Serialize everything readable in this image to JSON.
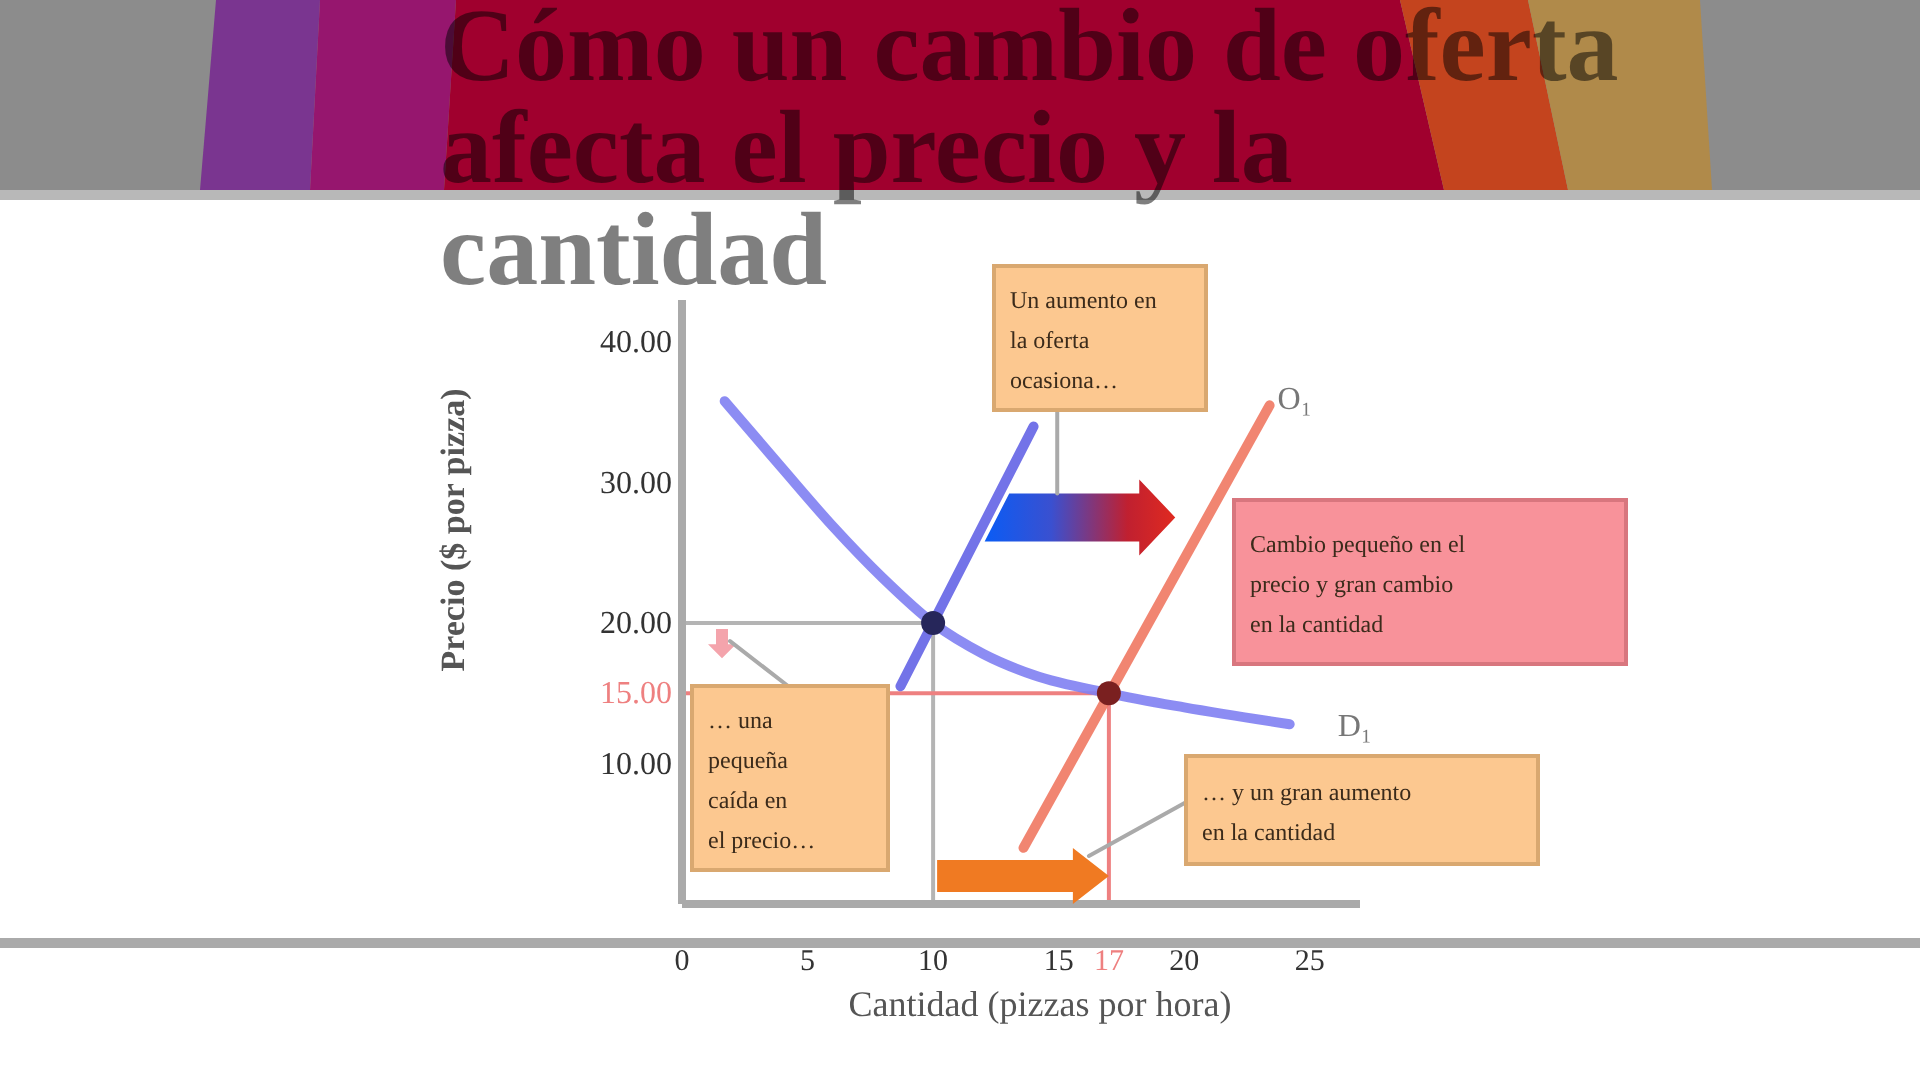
{
  "chart_data": {
    "type": "line",
    "title": "Cómo un cambio de oferta afecta el precio y la cantidad",
    "xlabel": "Cantidad (pizzas por hora)",
    "ylabel": "Precio ($ por pizza)",
    "xlim": [
      0,
      27
    ],
    "ylim": [
      0,
      43
    ],
    "xticks": [
      0,
      5,
      10,
      15,
      20,
      25
    ],
    "yticks": [
      {
        "value": 10,
        "label": "10.00"
      },
      {
        "value": 20,
        "label": "20.00"
      },
      {
        "value": 30,
        "label": "30.00"
      },
      {
        "value": 40,
        "label": "40.00"
      }
    ],
    "series": [
      {
        "name": "D₁",
        "color": "#7f7ff2",
        "x": [
          1.7,
          4,
          6,
          8,
          10,
          12,
          14,
          17,
          20,
          24.2
        ],
        "values": [
          35.8,
          31,
          26.9,
          23.2,
          20,
          17.8,
          16.3,
          15,
          14,
          12.8
        ]
      },
      {
        "color": "#6464e6",
        "x": [
          8.7,
          14
        ],
        "values": [
          15.5,
          34
        ]
      },
      {
        "name": "O₁",
        "color": "#f07862",
        "x": [
          13.6,
          23.4
        ],
        "values": [
          4,
          35.5
        ]
      },
      {
        "type": "scatter",
        "marker": "circle",
        "color": "#26265a",
        "x": [
          10
        ],
        "values": [
          20
        ]
      },
      {
        "type": "scatter",
        "marker": "circle",
        "color": "#7a2020",
        "x": [
          17
        ],
        "values": [
          15
        ]
      }
    ],
    "ref_lines": [
      {
        "axis": "y",
        "value": 20,
        "color": "#b4b4b4"
      },
      {
        "axis": "x",
        "value": 10,
        "color": "#b4b4b4"
      },
      {
        "axis": "y",
        "value": 15,
        "label": "15.00",
        "color": "#ee8080"
      },
      {
        "axis": "x",
        "value": 17,
        "label": "17",
        "color": "#ee8080"
      }
    ],
    "annotations": [
      "Un aumento en la oferta ocasiona…",
      "Cambio pequeño en el precio y gran cambio en la cantidad",
      "… una pequeña caída en el precio…",
      "… y un gran aumento en la cantidad"
    ]
  }
}
